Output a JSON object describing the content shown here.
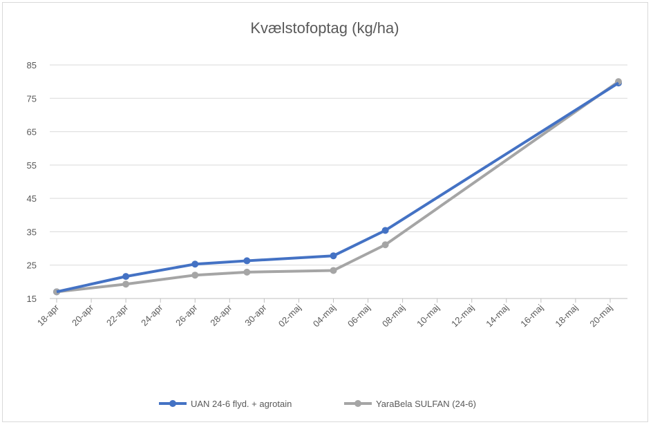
{
  "chart_data": {
    "type": "line",
    "title": "Kvælstofoptag (kg/ha)",
    "xlabel": "",
    "ylabel": "",
    "ylim": [
      15,
      85
    ],
    "yticks": [
      15,
      25,
      35,
      45,
      55,
      65,
      75,
      85
    ],
    "xticks": [
      "18-apr",
      "20-apr",
      "22-apr",
      "24-apr",
      "26-apr",
      "28-apr",
      "30-apr",
      "02-maj",
      "04-maj",
      "06-maj",
      "08-maj",
      "10-maj",
      "12-maj",
      "14-maj",
      "16-maj",
      "18-maj",
      "20-maj"
    ],
    "x_day_offsets_from_18_apr": [
      0,
      4,
      8,
      11,
      16,
      19,
      32
    ],
    "grid": true,
    "legend_position": "bottom",
    "series": [
      {
        "name": "UAN 24-6 flyd. + agrotain",
        "color": "#4472C4",
        "values": [
          17.0,
          21.6,
          25.3,
          26.3,
          27.8,
          35.4,
          79.6
        ]
      },
      {
        "name": "YaraBela SULFAN (24-6)",
        "color": "#A5A5A5",
        "values": [
          17.0,
          19.3,
          22.0,
          22.9,
          23.4,
          31.1,
          80.0
        ]
      }
    ]
  }
}
